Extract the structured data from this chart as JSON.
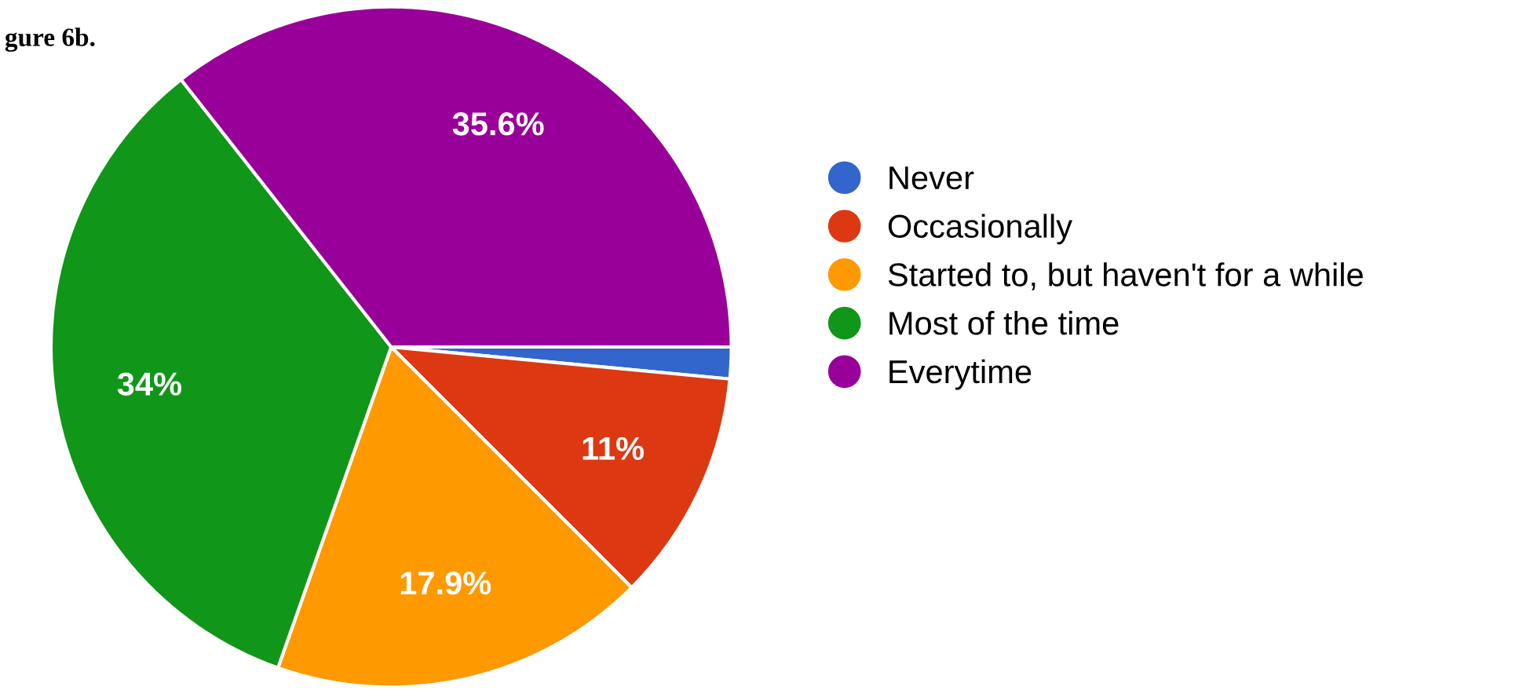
{
  "chart_data": {
    "type": "pie",
    "title": "gure 6b.",
    "categories": [
      "Never",
      "Occasionally",
      "Started to, but haven't for a while",
      "Most of the time",
      "Everytime"
    ],
    "values": [
      1.5,
      11,
      17.9,
      34,
      35.6
    ],
    "colors": [
      "#3366cc",
      "#dc3912",
      "#ff9900",
      "#109618",
      "#990099"
    ],
    "value_labels": [
      null,
      "11%",
      "17.9%",
      "34%",
      "35.6%"
    ],
    "legend": "right"
  }
}
